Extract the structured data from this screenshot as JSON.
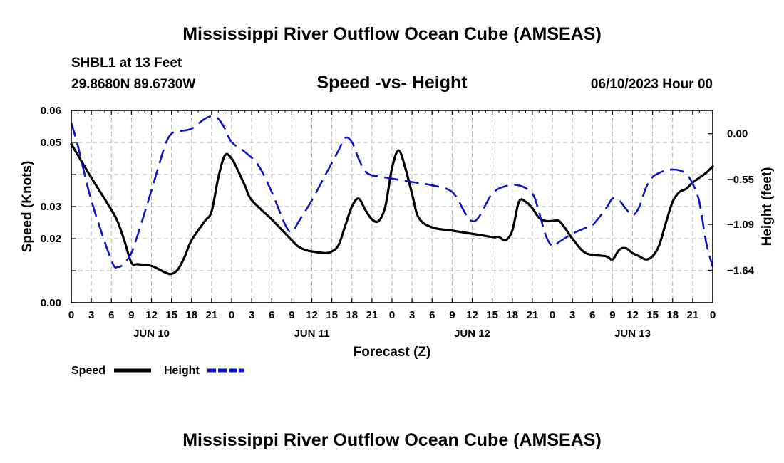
{
  "header": {
    "title": "Mississippi River Outflow Ocean Cube (AMSEAS)",
    "station": "SHBL1 at 13 Feet",
    "coords": "29.8680N  89.6730W",
    "subtitle": "Speed -vs- Height",
    "date": "06/10/2023 Hour 00"
  },
  "footer": {
    "title": "Mississippi River Outflow Ocean Cube (AMSEAS)"
  },
  "legend": {
    "speed_label": "Speed",
    "height_label": "Height"
  },
  "colors": {
    "speed": "#000000",
    "height": "#0a14c8",
    "grid": "#b3b3b3"
  },
  "chart_data": {
    "type": "line",
    "title": "Speed -vs- Height",
    "xlabel": "Forecast (Z)",
    "ylabel": "Speed (Knots)",
    "y2label": "Height (feet)",
    "xlim": [
      0,
      96
    ],
    "ylim": [
      0.0,
      0.06
    ],
    "y2lim": [
      -2.03,
      0.28
    ],
    "grid": true,
    "legend_position": "bottom-left",
    "x_ticks": [
      0,
      3,
      6,
      9,
      12,
      15,
      18,
      21,
      24,
      27,
      30,
      33,
      36,
      39,
      42,
      45,
      48,
      51,
      54,
      57,
      60,
      63,
      66,
      69,
      72,
      75,
      78,
      81,
      84,
      87,
      90,
      93,
      96
    ],
    "x_tick_labels": [
      "0",
      "3",
      "6",
      "9",
      "12",
      "15",
      "18",
      "21",
      "0",
      "3",
      "6",
      "9",
      "12",
      "15",
      "18",
      "21",
      "0",
      "3",
      "6",
      "9",
      "12",
      "15",
      "18",
      "21",
      "0",
      "3",
      "6",
      "9",
      "12",
      "15",
      "18",
      "21",
      "0"
    ],
    "day_labels": [
      {
        "label": "JUN 10",
        "x": 12
      },
      {
        "label": "JUN 11",
        "x": 36
      },
      {
        "label": "JUN 12",
        "x": 60
      },
      {
        "label": "JUN 13",
        "x": 84
      }
    ],
    "y_ticks": [
      0.0,
      0.01,
      0.02,
      0.03,
      0.04,
      0.05,
      0.06
    ],
    "y_tick_labels": [
      "0.00",
      "",
      "0.02",
      "0.03",
      "",
      "0.05",
      "0.06"
    ],
    "y2_ticks": [
      0.0,
      -0.55,
      -1.09,
      -1.64
    ],
    "y2_tick_labels": [
      "0.00",
      "−0.55",
      "−1.09",
      "−1.64"
    ],
    "series": [
      {
        "name": "Speed",
        "axis": "left",
        "style": "solid",
        "x": [
          0,
          3,
          6,
          7,
          8,
          9,
          10,
          12,
          14,
          15,
          16,
          17,
          18,
          20,
          21,
          22,
          23,
          24,
          25,
          26,
          27,
          30,
          33,
          34,
          35,
          36,
          38,
          39,
          40,
          41,
          42,
          43,
          44,
          45,
          46,
          47,
          48,
          49,
          50,
          51,
          52,
          54,
          57,
          60,
          63,
          64,
          65,
          66,
          67,
          68,
          69,
          70,
          71,
          72,
          73,
          74,
          75,
          77,
          80,
          81,
          82,
          83,
          84,
          85,
          86,
          87,
          88,
          89,
          90,
          91,
          92,
          93,
          94,
          95,
          96
        ],
        "y": [
          0.0495,
          0.039,
          0.029,
          0.025,
          0.019,
          0.0125,
          0.012,
          0.0115,
          0.0095,
          0.009,
          0.0105,
          0.0145,
          0.0195,
          0.0255,
          0.0285,
          0.039,
          0.046,
          0.045,
          0.041,
          0.0365,
          0.032,
          0.026,
          0.0195,
          0.0175,
          0.0165,
          0.016,
          0.0155,
          0.016,
          0.018,
          0.024,
          0.03,
          0.0325,
          0.029,
          0.026,
          0.0255,
          0.03,
          0.042,
          0.0475,
          0.042,
          0.034,
          0.0265,
          0.0235,
          0.0225,
          0.0215,
          0.0205,
          0.0205,
          0.0195,
          0.0225,
          0.0315,
          0.0315,
          0.0295,
          0.0265,
          0.0255,
          0.0255,
          0.0255,
          0.023,
          0.02,
          0.0155,
          0.0145,
          0.0135,
          0.0165,
          0.017,
          0.0155,
          0.0145,
          0.0135,
          0.0145,
          0.018,
          0.025,
          0.0315,
          0.0345,
          0.0355,
          0.0375,
          0.039,
          0.0405,
          0.0425
        ]
      },
      {
        "name": "Height",
        "axis": "right",
        "style": "dashed",
        "x": [
          0,
          1,
          3,
          6,
          7,
          8,
          9,
          10,
          12,
          14,
          15,
          16,
          17,
          18,
          19,
          20,
          21,
          22,
          23,
          24,
          26,
          28,
          30,
          32,
          33,
          34,
          36,
          38,
          40,
          41,
          42,
          43,
          44,
          45,
          46,
          48,
          51,
          54,
          57,
          59,
          60,
          61,
          63,
          65,
          67,
          69,
          70,
          71,
          72,
          73,
          74,
          75,
          77,
          78,
          80,
          81,
          82,
          83,
          84,
          85,
          86,
          87,
          88,
          89,
          90,
          91,
          92,
          93,
          94,
          95,
          96
        ],
        "y": [
          0.13,
          -0.15,
          -0.8,
          -1.52,
          -1.6,
          -1.55,
          -1.43,
          -1.2,
          -0.68,
          -0.15,
          0.0,
          0.03,
          0.04,
          0.06,
          0.12,
          0.18,
          0.21,
          0.18,
          0.06,
          -0.1,
          -0.22,
          -0.38,
          -0.7,
          -1.09,
          -1.18,
          -1.06,
          -0.8,
          -0.5,
          -0.2,
          -0.05,
          -0.1,
          -0.3,
          -0.45,
          -0.5,
          -0.51,
          -0.54,
          -0.58,
          -0.62,
          -0.7,
          -0.96,
          -1.05,
          -1.0,
          -0.72,
          -0.63,
          -0.62,
          -0.72,
          -0.94,
          -1.22,
          -1.35,
          -1.3,
          -1.25,
          -1.2,
          -1.13,
          -1.1,
          -0.9,
          -0.78,
          -0.8,
          -0.9,
          -0.98,
          -0.88,
          -0.65,
          -0.52,
          -0.47,
          -0.44,
          -0.43,
          -0.44,
          -0.48,
          -0.6,
          -0.82,
          -1.3,
          -1.6
        ]
      }
    ]
  }
}
